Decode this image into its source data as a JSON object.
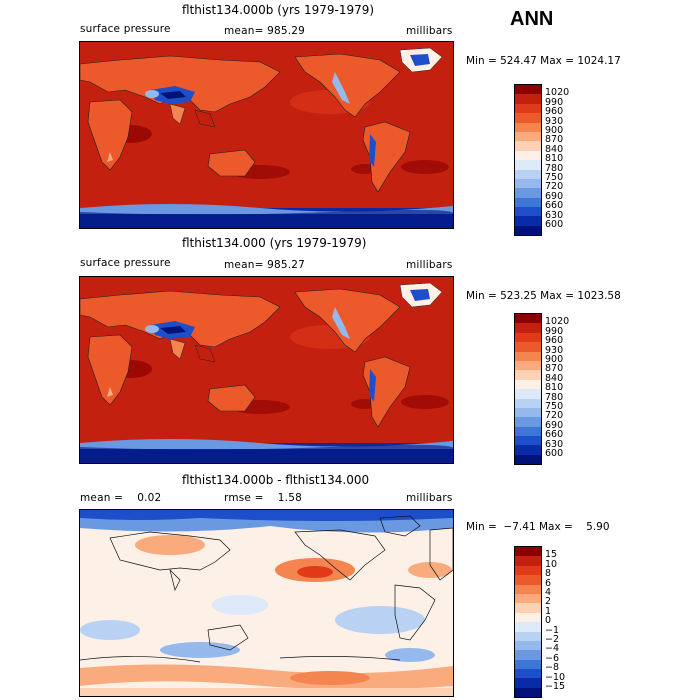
{
  "season": "ANN",
  "panels": [
    {
      "title": "flthist134.000b (yrs 1979-1979)",
      "left_label": "surface pressure",
      "center_label": "mean= 985.29",
      "right_label": "millibars",
      "minmax": "Min = 524.47 Max = 1024.17",
      "colorbar": {
        "labels": [
          "1020",
          "990",
          "960",
          "930",
          "900",
          "870",
          "840",
          "810",
          "780",
          "750",
          "720",
          "690",
          "660",
          "630",
          "600"
        ],
        "colors": [
          "#8b0000",
          "#c4200f",
          "#e03a1a",
          "#ec5a2c",
          "#f58550",
          "#f9ab7e",
          "#fdd1b4",
          "#fdf0e6",
          "#dde8f8",
          "#b9d2f3",
          "#95b9ec",
          "#6a99e2",
          "#3e76d8",
          "#1c4fc9",
          "#0a2ba8",
          "#00127a"
        ],
        "palette": "blue-to-red"
      }
    },
    {
      "title": "flthist134.000 (yrs 1979-1979)",
      "left_label": "surface pressure",
      "center_label": "mean= 985.27",
      "right_label": "millibars",
      "minmax": "Min = 523.25 Max = 1023.58",
      "colorbar": {
        "labels": [
          "1020",
          "990",
          "960",
          "930",
          "900",
          "870",
          "840",
          "810",
          "780",
          "750",
          "720",
          "690",
          "660",
          "630",
          "600"
        ],
        "colors": [
          "#8b0000",
          "#c4200f",
          "#e03a1a",
          "#ec5a2c",
          "#f58550",
          "#f9ab7e",
          "#fdd1b4",
          "#fdf0e6",
          "#dde8f8",
          "#b9d2f3",
          "#95b9ec",
          "#6a99e2",
          "#3e76d8",
          "#1c4fc9",
          "#0a2ba8",
          "#00127a"
        ],
        "palette": "blue-to-red"
      }
    },
    {
      "title": "flthist134.000b - flthist134.000",
      "left_label": "mean =    0.02",
      "center_label": "rmse =    1.58",
      "right_label": "millibars",
      "minmax": "Min =  −7.41 Max =    5.90",
      "colorbar": {
        "labels": [
          "15",
          "10",
          "8",
          "6",
          "4",
          "2",
          "1",
          "0",
          "−1",
          "−2",
          "−4",
          "−6",
          "−8",
          "−10",
          "−15"
        ],
        "colors": [
          "#8b0000",
          "#c4200f",
          "#e03a1a",
          "#ec5a2c",
          "#f58550",
          "#f9ab7e",
          "#fdd1b4",
          "#fdf0e6",
          "#dde8f8",
          "#b9d2f3",
          "#95b9ec",
          "#6a99e2",
          "#3e76d8",
          "#1c4fc9",
          "#0a2ba8",
          "#00127a"
        ],
        "palette": "blue-white-red diverging"
      }
    }
  ],
  "map_colors": {
    "ocean_high": "#c4200f",
    "land_mid": "#ec5a2c",
    "high_plateau": "#1c4fc9",
    "antarctica": "#0a2ba8",
    "diff_background": "#fdf0e6",
    "diff_positive": "#f9ab7e",
    "diff_negative": "#b9d2f3"
  }
}
